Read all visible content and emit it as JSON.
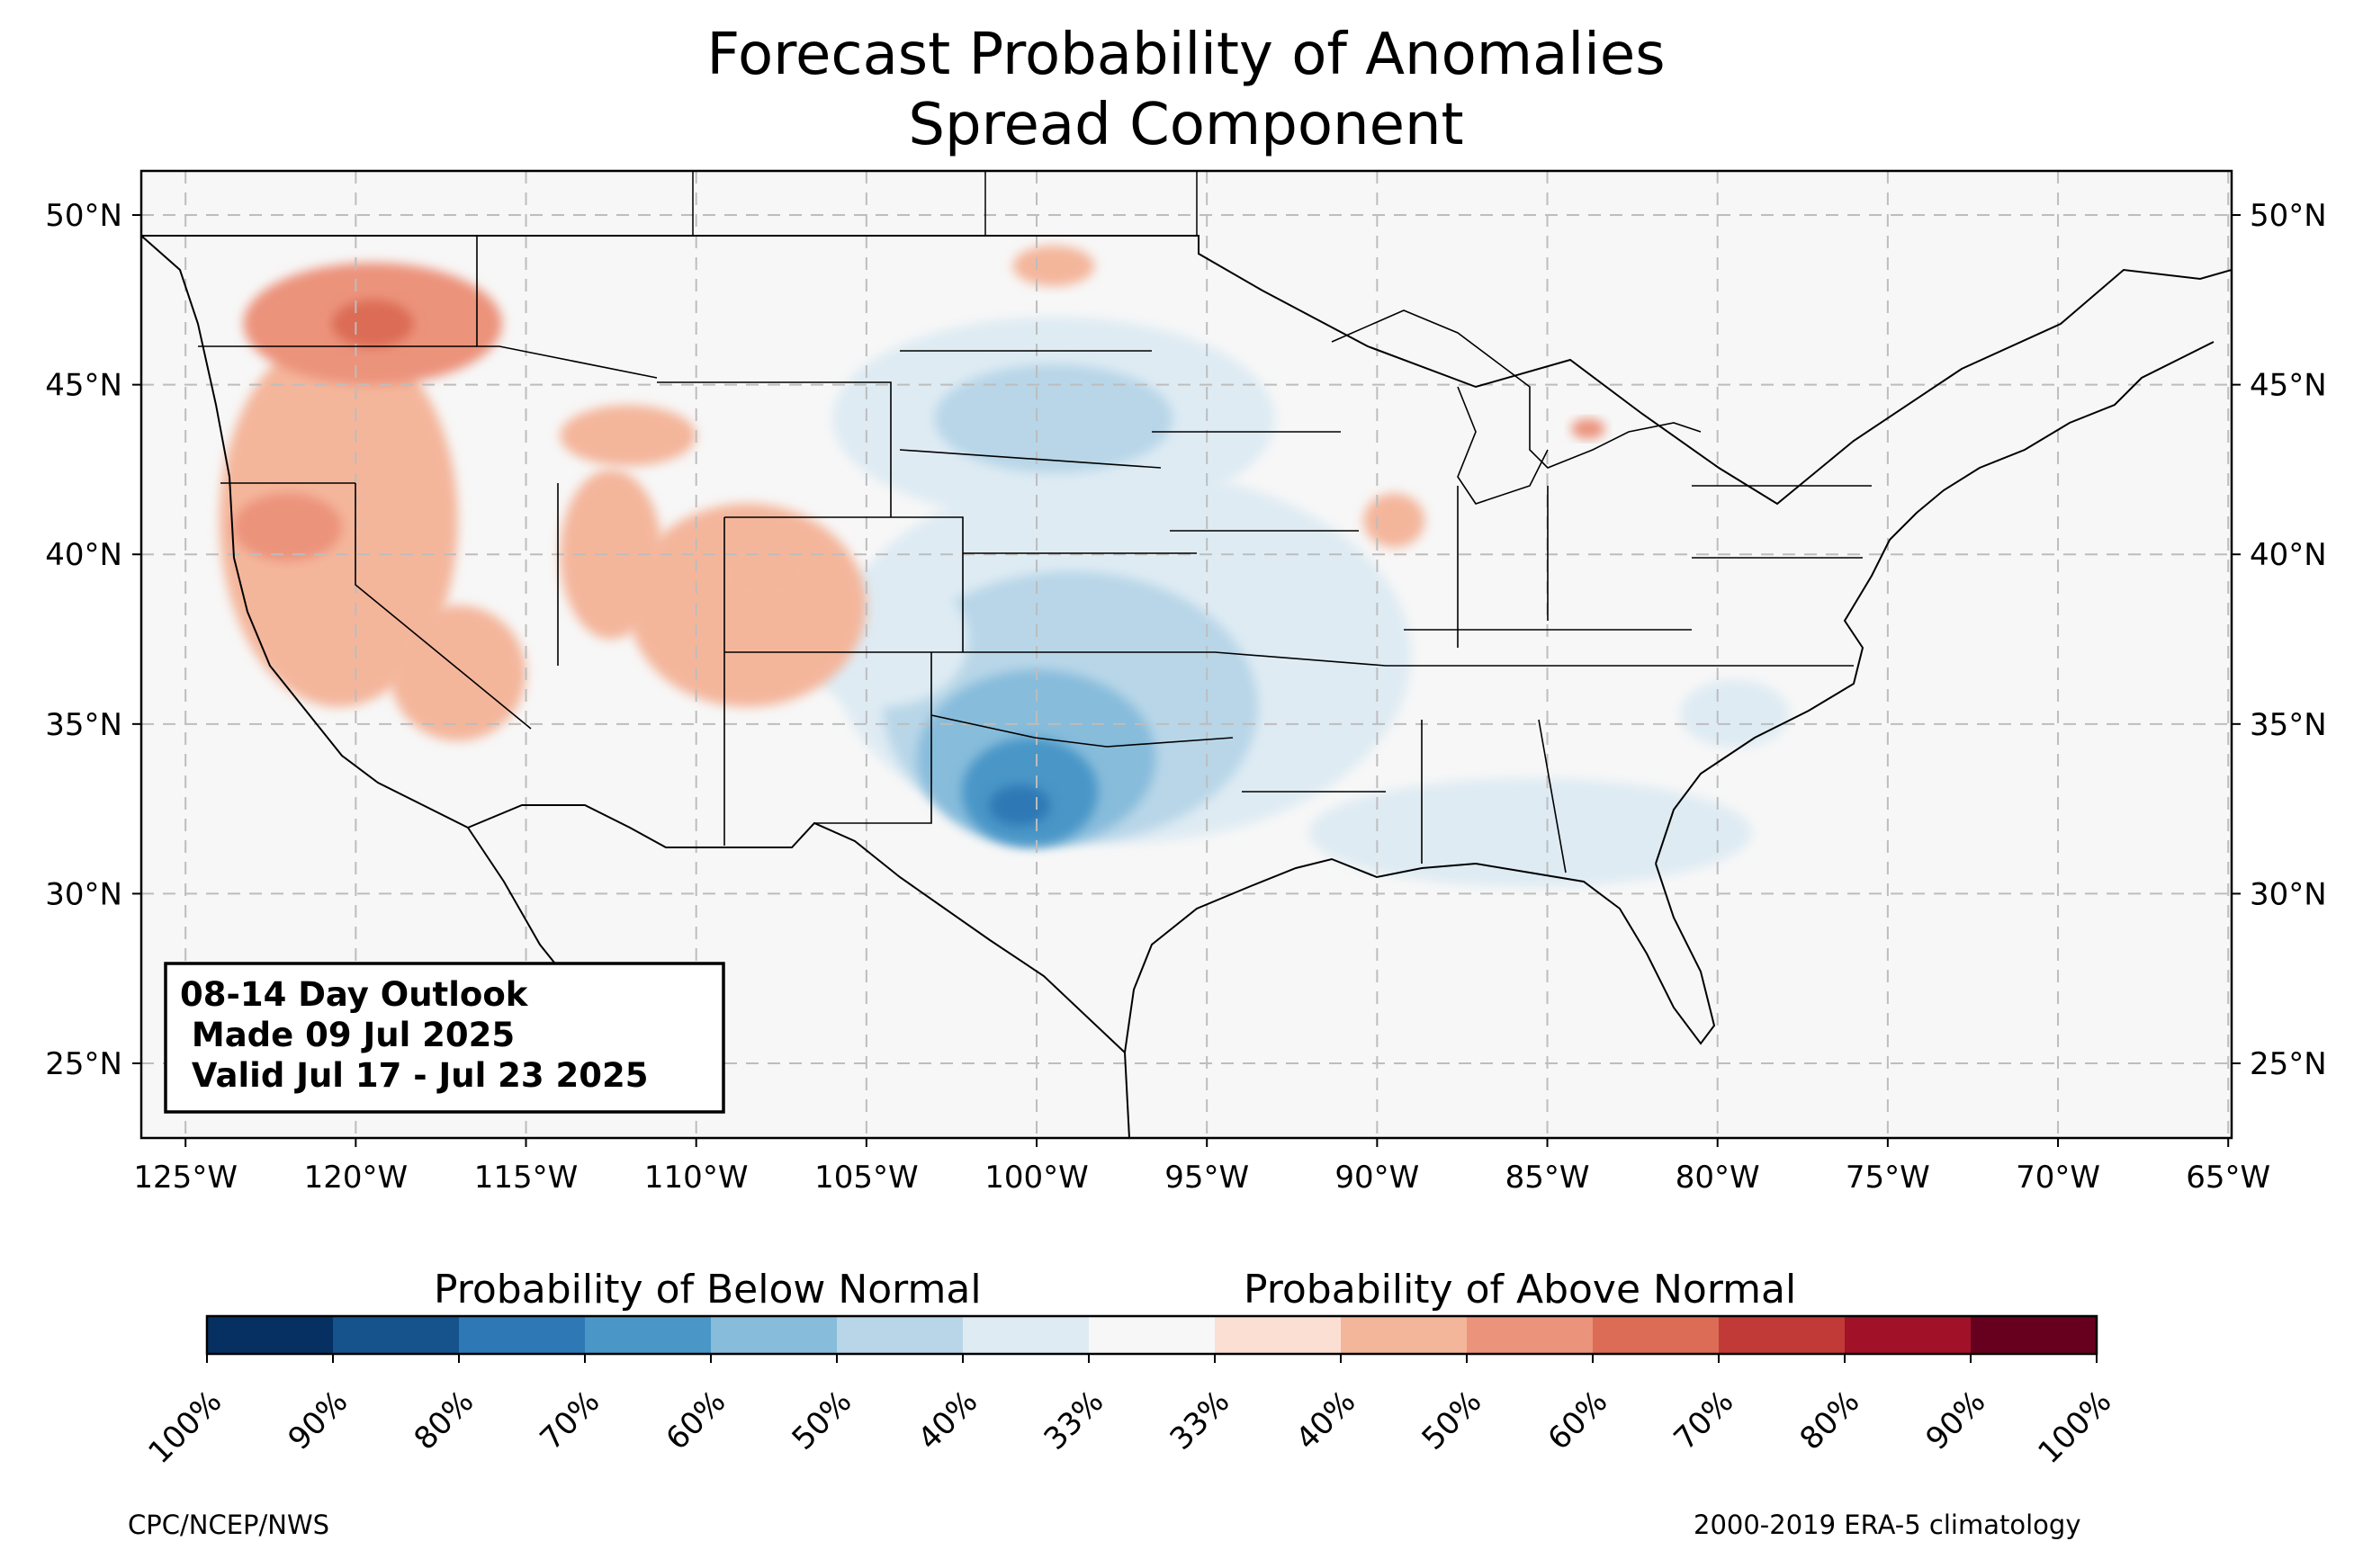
{
  "title": {
    "line1": "Forecast Probability of Anomalies",
    "line2": "Spread Component"
  },
  "map": {
    "lon_ticks": [
      "125°W",
      "120°W",
      "115°W",
      "110°W",
      "105°W",
      "100°W",
      "95°W",
      "90°W",
      "85°W",
      "80°W",
      "75°W",
      "70°W",
      "65°W"
    ],
    "lat_ticks": [
      "50°N",
      "45°N",
      "40°N",
      "35°N",
      "30°N",
      "25°N"
    ],
    "extent": {
      "lon_min": -126.3,
      "lon_max": -64.9,
      "lat_min": 22.8,
      "lat_max": 51.3
    },
    "gridlines": true
  },
  "info_box": {
    "line1": "08-14 Day Outlook",
    "line2": " Made 09 Jul 2025",
    "line3": " Valid Jul 17 - Jul 23 2025"
  },
  "colorbar": {
    "below_label": "Probability of Below Normal",
    "above_label": "Probability of Above Normal",
    "tick_labels": [
      "100%",
      "90%",
      "80%",
      "70%",
      "60%",
      "50%",
      "40%",
      "33%",
      "33%",
      "40%",
      "50%",
      "60%",
      "70%",
      "80%",
      "90%",
      "100%"
    ],
    "colors": [
      "#053061",
      "#16528c",
      "#2e78b5",
      "#4a96c7",
      "#87bcdb",
      "#b8d6e8",
      "#deebf3",
      "#f7f7f7",
      "#fbdfd2",
      "#f4b69b",
      "#ec937b",
      "#dc6c55",
      "#c23a37",
      "#a11228",
      "#67001f"
    ]
  },
  "footer": {
    "left": "CPC/NCEP/NWS",
    "right": "2000-2019 ERA-5 climatology"
  },
  "anomaly_regions": [
    {
      "category": "below",
      "level": "40%",
      "lon": -97.5,
      "lat": 37.0,
      "rlon": 8.5,
      "rlat": 5.5
    },
    {
      "category": "below",
      "level": "40%",
      "lon": -99.5,
      "lat": 44.0,
      "rlon": 6.5,
      "rlat": 3.0
    },
    {
      "category": "below",
      "level": "50%",
      "lon": -99.0,
      "lat": 35.5,
      "rlon": 5.5,
      "rlat": 4.0
    },
    {
      "category": "below",
      "level": "60%",
      "lon": -100.0,
      "lat": 34.0,
      "rlon": 3.5,
      "rlat": 2.6
    },
    {
      "category": "below",
      "level": "70%",
      "lon": -100.2,
      "lat": 33.0,
      "rlon": 2.0,
      "rlat": 1.6
    },
    {
      "category": "below",
      "level": "80%",
      "lon": -100.5,
      "lat": 32.6,
      "rlon": 0.9,
      "rlat": 0.6
    },
    {
      "category": "below",
      "level": "50%",
      "lon": -99.5,
      "lat": 44.0,
      "rlon": 3.5,
      "rlat": 1.6
    },
    {
      "category": "below",
      "level": "40%",
      "lon": -104.5,
      "lat": 37.5,
      "rlon": 2.5,
      "rlat": 2.0
    },
    {
      "category": "below",
      "level": "40%",
      "lon": -85.5,
      "lat": 31.8,
      "rlon": 6.5,
      "rlat": 1.6
    },
    {
      "category": "below",
      "level": "40%",
      "lon": -79.5,
      "lat": 35.3,
      "rlon": 1.6,
      "rlat": 1.0
    },
    {
      "category": "above",
      "level": "40%",
      "lon": -120.5,
      "lat": 41.0,
      "rlon": 3.5,
      "rlat": 5.5
    },
    {
      "category": "above",
      "level": "50%",
      "lon": -119.5,
      "lat": 46.8,
      "rlon": 3.8,
      "rlat": 1.8
    },
    {
      "category": "above",
      "level": "60%",
      "lon": -119.5,
      "lat": 46.8,
      "rlon": 1.2,
      "rlat": 0.7
    },
    {
      "category": "above",
      "level": "50%",
      "lon": -122.0,
      "lat": 40.8,
      "rlon": 1.6,
      "rlat": 1.0
    },
    {
      "category": "above",
      "level": "40%",
      "lon": -108.5,
      "lat": 38.5,
      "rlon": 3.5,
      "rlat": 3.0
    },
    {
      "category": "above",
      "level": "40%",
      "lon": -112.5,
      "lat": 40.0,
      "rlon": 1.5,
      "rlat": 2.5
    },
    {
      "category": "above",
      "level": "40%",
      "lon": -108.0,
      "lat": 39.5,
      "rlon": 1.4,
      "rlat": 1.0
    },
    {
      "category": "above",
      "level": "40%",
      "lon": -117.0,
      "lat": 36.5,
      "rlon": 2.0,
      "rlat": 2.0
    },
    {
      "category": "above",
      "level": "40%",
      "lon": -99.5,
      "lat": 48.5,
      "rlon": 1.2,
      "rlat": 0.6
    },
    {
      "category": "above",
      "level": "40%",
      "lon": -89.5,
      "lat": 41.0,
      "rlon": 0.9,
      "rlat": 0.8
    },
    {
      "category": "above",
      "level": "40%",
      "lon": -112.0,
      "lat": 43.5,
      "rlon": 2.0,
      "rlat": 0.9
    },
    {
      "category": "above",
      "level": "50%",
      "lon": -83.8,
      "lat": 43.7,
      "rlon": 0.5,
      "rlat": 0.3
    }
  ]
}
